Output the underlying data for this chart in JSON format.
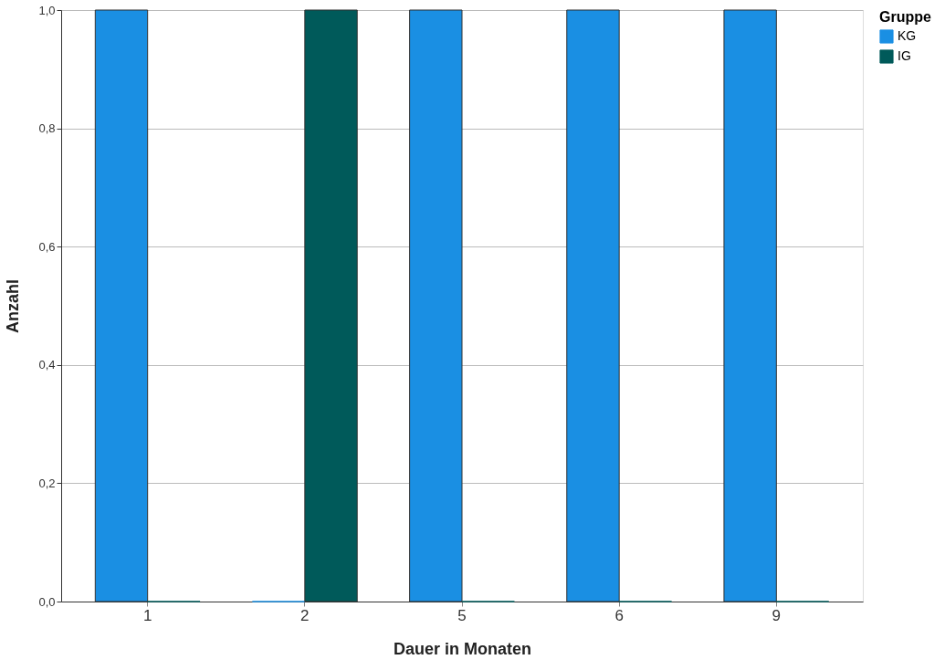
{
  "chart_data": {
    "type": "bar",
    "xlabel": "Dauer in Monaten",
    "ylabel": "Anzahl",
    "legend_title": "Gruppe",
    "categories": [
      "1",
      "2",
      "5",
      "6",
      "9"
    ],
    "series": [
      {
        "name": "KG",
        "color": "#1a8fe3",
        "values": [
          1,
          0,
          1,
          1,
          1
        ]
      },
      {
        "name": "IG",
        "color": "#005a5a",
        "values": [
          0,
          1,
          0,
          0,
          0
        ]
      }
    ],
    "ylim": [
      0,
      1
    ],
    "yticks": [
      {
        "value": 0,
        "label": "0,0"
      },
      {
        "value": 0.2,
        "label": "0,2"
      },
      {
        "value": 0.4,
        "label": "0,4"
      },
      {
        "value": 0.6,
        "label": "0,6"
      },
      {
        "value": 0.8,
        "label": "0,8"
      },
      {
        "value": 1,
        "label": "1,0"
      }
    ],
    "grid": "y",
    "legend": "top right"
  }
}
